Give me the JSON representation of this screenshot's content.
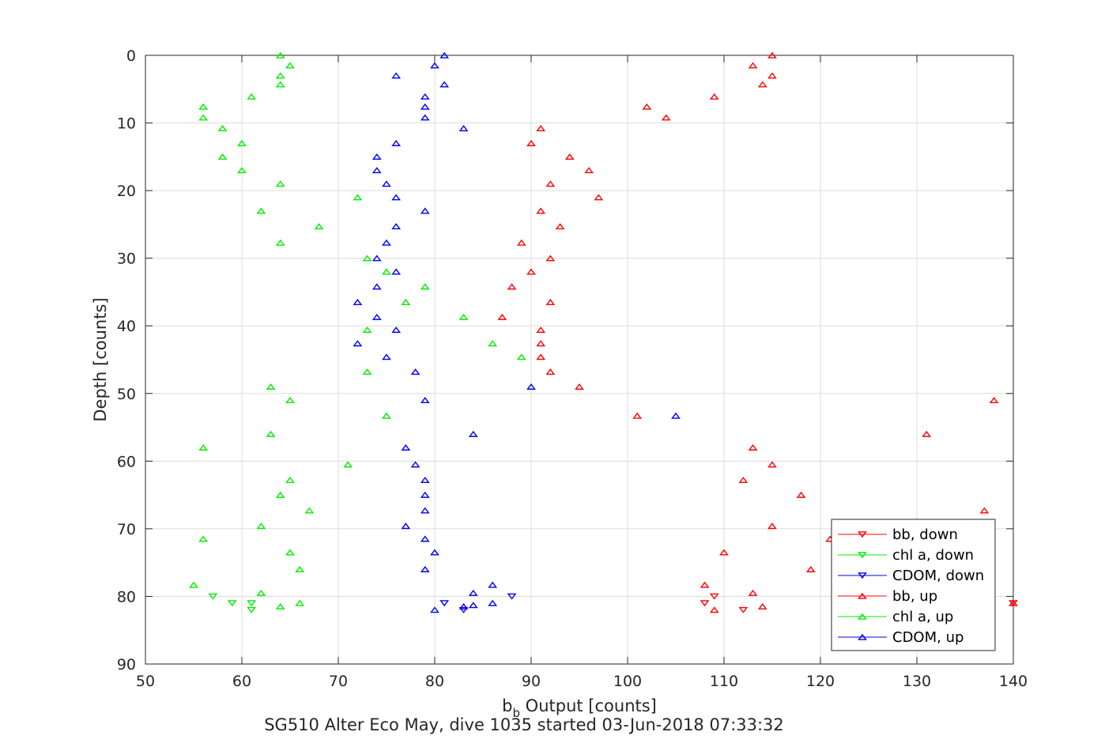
{
  "chart_data": {
    "type": "scatter",
    "title": "",
    "subtitle": "SG510 Alter Eco May, dive 1035 started 03-Jun-2018 07:33:32",
    "xlabel": {
      "base": "b",
      "sub": "b",
      "rest": " Output [counts]"
    },
    "ylabel": "Depth [counts]",
    "xlim": [
      50,
      140
    ],
    "ylim": [
      0,
      90
    ],
    "y_reversed": true,
    "grid": true,
    "xticks": [
      "50",
      "60",
      "70",
      "80",
      "90",
      "100",
      "110",
      "120",
      "130",
      "140"
    ],
    "yticks": [
      "0",
      "10",
      "20",
      "30",
      "40",
      "50",
      "60",
      "70",
      "80",
      "90"
    ],
    "legend_position": "bottom-right",
    "colors": {
      "bb": "#ff0000",
      "chl": "#00ee00",
      "cdom": "#0000ee"
    },
    "series": [
      {
        "name": "bb, down",
        "color": "#ff0000",
        "marker": "down",
        "x": [
          109,
          108,
          112,
          140
        ],
        "y": [
          80,
          81,
          82,
          81
        ]
      },
      {
        "name": "chl a, down",
        "color": "#00ee00",
        "marker": "down",
        "x": [
          57,
          59,
          61,
          61
        ],
        "y": [
          80,
          81,
          81,
          82
        ]
      },
      {
        "name": "CDOM, down",
        "color": "#0000ee",
        "marker": "down",
        "x": [
          88,
          81,
          83
        ],
        "y": [
          80,
          81,
          82
        ]
      },
      {
        "name": "bb, up",
        "color": "#ff0000",
        "marker": "up",
        "x": [
          115,
          113,
          115,
          114,
          109,
          102,
          104,
          91,
          90,
          94,
          96,
          92,
          97,
          91,
          93,
          89,
          92,
          90,
          88,
          92,
          87,
          91,
          91,
          91,
          92,
          95,
          138,
          101,
          131,
          113,
          115,
          112,
          118,
          137,
          115,
          121,
          110,
          119,
          108,
          113,
          114,
          109,
          140
        ],
        "y": [
          0,
          1.5,
          3,
          4.3,
          6.1,
          7.6,
          9.2,
          10.8,
          13,
          15,
          17,
          19,
          21,
          23,
          25.3,
          27.7,
          30,
          32,
          34.2,
          36.5,
          38.7,
          40.6,
          42.6,
          44.6,
          46.8,
          49,
          51,
          53.3,
          56,
          58,
          60.5,
          62.8,
          65,
          67.3,
          69.6,
          71.5,
          73.5,
          76,
          78.3,
          79.5,
          81.5,
          82,
          81
        ]
      },
      {
        "name": "chl a, up",
        "color": "#00ee00",
        "marker": "up",
        "x": [
          64,
          65,
          64,
          64,
          61,
          56,
          56,
          58,
          60,
          58,
          60,
          64,
          72,
          62,
          68,
          64,
          73,
          75,
          79,
          77,
          83,
          73,
          86,
          89,
          73,
          63,
          65,
          75,
          63,
          56,
          71,
          65,
          64,
          67,
          62,
          56,
          65,
          66,
          55,
          62,
          66,
          64
        ],
        "y": [
          0,
          1.5,
          3,
          4.3,
          6.1,
          7.6,
          9.2,
          10.8,
          13,
          15,
          17,
          19,
          21,
          23,
          25.3,
          27.7,
          30,
          32,
          34.2,
          36.5,
          38.7,
          40.6,
          42.6,
          44.6,
          46.8,
          49,
          51,
          53.3,
          56,
          58,
          60.5,
          62.8,
          65,
          67.3,
          69.6,
          71.5,
          73.5,
          76,
          78.3,
          79.5,
          81,
          81.5
        ]
      },
      {
        "name": "CDOM, up",
        "color": "#0000ee",
        "marker": "up",
        "x": [
          81,
          80,
          76,
          81,
          79,
          79,
          79,
          83,
          76,
          74,
          74,
          75,
          76,
          79,
          76,
          75,
          74,
          76,
          74,
          72,
          74,
          76,
          72,
          75,
          78,
          90,
          79,
          105,
          84,
          77,
          78,
          79,
          79,
          79,
          77,
          79,
          80,
          79,
          86,
          84,
          86,
          84,
          83,
          80
        ],
        "y": [
          0,
          1.5,
          3,
          4.3,
          6.1,
          7.6,
          9.2,
          10.8,
          13,
          15,
          17,
          19,
          21,
          23,
          25.3,
          27.7,
          30,
          32,
          34.2,
          36.5,
          38.7,
          40.6,
          42.6,
          44.6,
          46.8,
          49,
          51,
          53.3,
          56,
          58,
          60.5,
          62.8,
          65,
          67.3,
          69.6,
          71.5,
          73.5,
          76,
          78.3,
          79.5,
          81,
          81.3,
          81.5,
          82
        ]
      }
    ]
  }
}
